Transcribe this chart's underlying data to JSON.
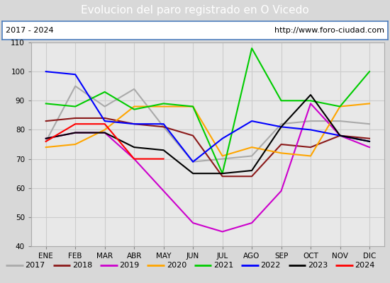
{
  "title": "Evolucion del paro registrado en O Vicedo",
  "subtitle_left": "2017 - 2024",
  "subtitle_right": "http://www.foro-ciudad.com",
  "months": [
    "ENE",
    "FEB",
    "MAR",
    "ABR",
    "MAY",
    "JUN",
    "JUL",
    "AGO",
    "SEP",
    "OCT",
    "NOV",
    "DIC"
  ],
  "ylim": [
    40,
    110
  ],
  "yticks": [
    40,
    50,
    60,
    70,
    80,
    90,
    100,
    110
  ],
  "series": {
    "2017": {
      "color": "#aaaaaa",
      "values": [
        76,
        95,
        88,
        94,
        81,
        69,
        70,
        71,
        82,
        83,
        83,
        82
      ]
    },
    "2018": {
      "color": "#8b1a1a",
      "values": [
        83,
        84,
        84,
        82,
        81,
        78,
        64,
        64,
        75,
        74,
        78,
        77
      ]
    },
    "2019": {
      "color": "#cc00cc",
      "values": [
        77,
        79,
        79,
        70,
        59,
        48,
        45,
        48,
        59,
        89,
        78,
        74
      ]
    },
    "2020": {
      "color": "#ffa500",
      "values": [
        74,
        75,
        80,
        88,
        88,
        88,
        71,
        74,
        72,
        71,
        88,
        89
      ]
    },
    "2021": {
      "color": "#00cc00",
      "values": [
        89,
        88,
        93,
        87,
        89,
        88,
        65,
        108,
        90,
        90,
        88,
        100
      ]
    },
    "2022": {
      "color": "#0000ff",
      "values": [
        100,
        99,
        83,
        82,
        82,
        69,
        77,
        83,
        81,
        80,
        78,
        76
      ]
    },
    "2023": {
      "color": "#000000",
      "values": [
        77,
        79,
        79,
        74,
        73,
        65,
        65,
        66,
        81,
        92,
        78,
        76
      ]
    },
    "2024": {
      "color": "#ff0000",
      "values": [
        76,
        82,
        82,
        70,
        70,
        null,
        null,
        null,
        null,
        null,
        null,
        null
      ]
    }
  },
  "title_bg": "#4d7ebe",
  "title_color": "white",
  "title_fontsize": 11,
  "subtitle_fontsize": 8,
  "fig_bg": "#d8d8d8",
  "plot_bg": "#e8e8e8",
  "grid_color": "#cccccc",
  "legend_fontsize": 8,
  "line_width": 1.5
}
